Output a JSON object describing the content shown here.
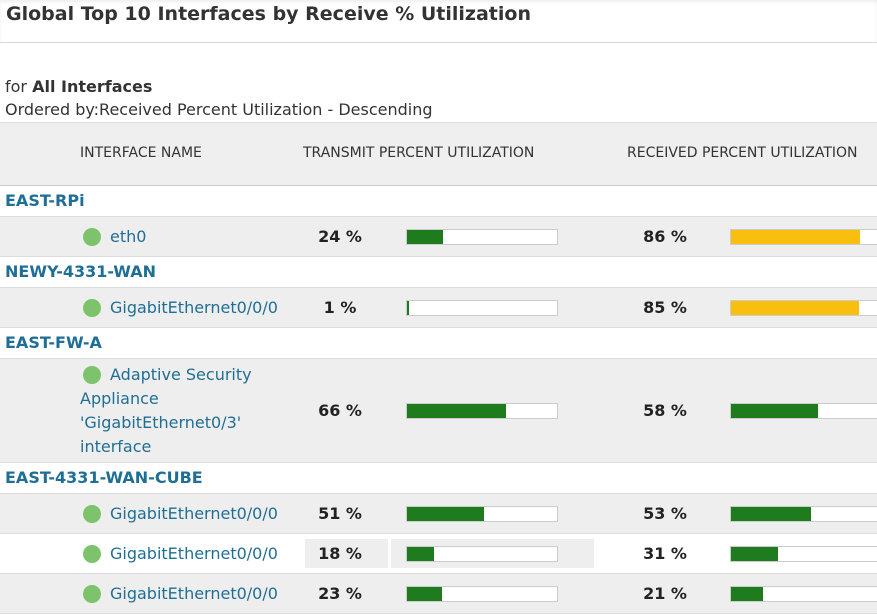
{
  "header": {
    "title": "Global Top 10 Interfaces by Receive % Utilization"
  },
  "filter": {
    "prefix": "for",
    "scope": "All Interfaces",
    "order": "Ordered by:Received Percent Utilization - Descending"
  },
  "table": {
    "columns": [
      "INTERFACE NAME",
      "TRANSMIT PERCENT UTILIZATION",
      "RECEIVED PERCENT UTILIZATION"
    ],
    "groups": [
      {
        "node": "EAST-RPi",
        "interfaces": [
          {
            "name": "eth0",
            "status_color": "#7dc36b",
            "transmit": {
              "value": 24,
              "label": "24 %",
              "color": "#1e7b1e"
            },
            "received": {
              "value": 86,
              "label": "86 %",
              "color": "#f9bf0f"
            }
          }
        ]
      },
      {
        "node": "NEWY-4331-WAN",
        "interfaces": [
          {
            "name": "GigabitEthernet0/0/0",
            "status_color": "#7dc36b",
            "transmit": {
              "value": 1,
              "label": "1 %",
              "color": "#1e7b1e"
            },
            "received": {
              "value": 85,
              "label": "85 %",
              "color": "#f9bf0f"
            }
          }
        ]
      },
      {
        "node": "EAST-FW-A",
        "interfaces": [
          {
            "name": "Adaptive Security Appliance 'GigabitEthernet0/3' interface",
            "status_color": "#7dc36b",
            "transmit": {
              "value": 66,
              "label": "66 %",
              "color": "#1e7b1e"
            },
            "received": {
              "value": 58,
              "label": "58 %",
              "color": "#1e7b1e"
            }
          }
        ]
      },
      {
        "node": "EAST-4331-WAN-CUBE",
        "interfaces": [
          {
            "name": "GigabitEthernet0/0/0",
            "status_color": "#7dc36b",
            "transmit": {
              "value": 51,
              "label": "51 %",
              "color": "#1e7b1e"
            },
            "received": {
              "value": 53,
              "label": "53 %",
              "color": "#1e7b1e"
            }
          },
          {
            "name": "GigabitEthernet0/0/0",
            "status_color": "#7dc36b",
            "transmit": {
              "value": 18,
              "label": "18 %",
              "color": "#1e7b1e"
            },
            "received": {
              "value": 31,
              "label": "31 %",
              "color": "#1e7b1e"
            }
          },
          {
            "name": "GigabitEthernet0/0/0",
            "status_color": "#7dc36b",
            "transmit": {
              "value": 23,
              "label": "23 %",
              "color": "#1e7b1e"
            },
            "received": {
              "value": 21,
              "label": "21 %",
              "color": "#1e7b1e"
            }
          }
        ]
      }
    ]
  }
}
